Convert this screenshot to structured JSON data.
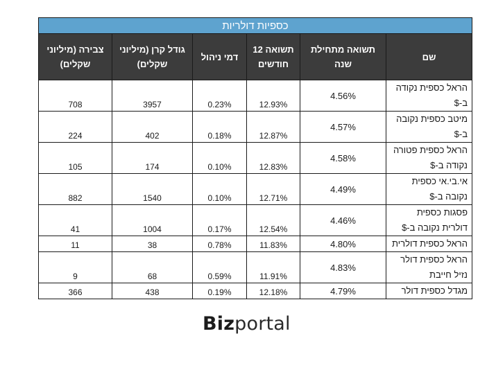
{
  "table": {
    "title": "כספיות דולריות",
    "headers": {
      "name": "שם",
      "ytd": "תשואה מתחילת שנה",
      "return_12m": "תשואה 12 חודשים",
      "management_fee": "דמי ניהול",
      "fund_size": "גודל קרן (מיליוני שקלים)",
      "inflow": "צבירה (מיליוני שקלים)"
    },
    "rows": [
      {
        "name": "הראל כספית נקודה ב-$",
        "ytd": "4.56%",
        "return_12m": "12.93%",
        "management_fee": "0.23%",
        "fund_size": "3957",
        "inflow": "708"
      },
      {
        "name": "מיטב כספית נקובה ב-$",
        "ytd": "4.57%",
        "return_12m": "12.87%",
        "management_fee": "0.18%",
        "fund_size": "402",
        "inflow": "224"
      },
      {
        "name": "הראל כספית פטורה נקודה ב-$",
        "ytd": "4.58%",
        "return_12m": "12.83%",
        "management_fee": "0.10%",
        "fund_size": "174",
        "inflow": "105"
      },
      {
        "name": "אי.בי.אי כספית נקובה ב-$",
        "ytd": "4.49%",
        "return_12m": "12.71%",
        "management_fee": "0.10%",
        "fund_size": "1540",
        "inflow": "882"
      },
      {
        "name": "פסגות כספית דולרית נקובה ב-$",
        "ytd": "4.46%",
        "return_12m": "12.54%",
        "management_fee": "0.17%",
        "fund_size": "1004",
        "inflow": "41"
      },
      {
        "name": "הראל כספית דולרית",
        "ytd": "4.80%",
        "return_12m": "11.83%",
        "management_fee": "0.78%",
        "fund_size": "38",
        "inflow": "11"
      },
      {
        "name": "הראל כספית דולר נזיל חייבת",
        "ytd": "4.83%",
        "return_12m": "11.91%",
        "management_fee": "0.59%",
        "fund_size": "68",
        "inflow": "9"
      },
      {
        "name": "מגדל כספית דולר",
        "ytd": "4.79%",
        "return_12m": "12.18%",
        "management_fee": "0.19%",
        "fund_size": "438",
        "inflow": "366"
      }
    ]
  },
  "logo": {
    "bold_part": "Biz",
    "light_part": "portal"
  }
}
